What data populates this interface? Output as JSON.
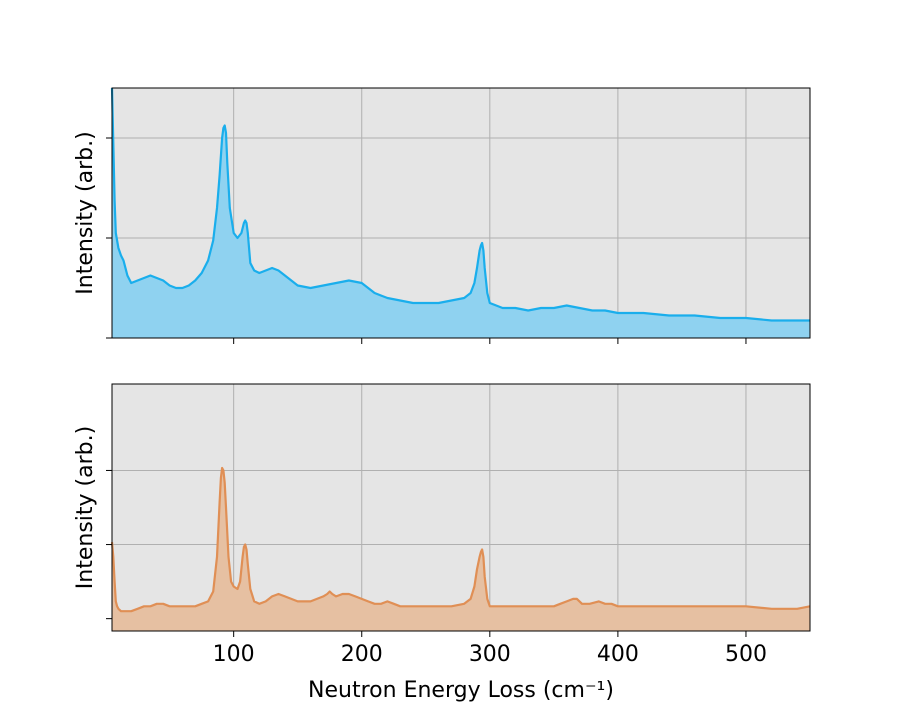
{
  "chart_data": [
    {
      "type": "area",
      "ylabel": "Intensity (arb.)",
      "xlabel": "",
      "xlim": [
        5,
        550
      ],
      "ylim": [
        0,
        1
      ],
      "grid": true,
      "x_ticks": [
        100,
        200,
        300,
        400,
        500
      ],
      "x_tick_labels_shown": false,
      "y_ticks": [
        0,
        0.4,
        0.8
      ],
      "y_tick_labels_shown": false,
      "colors": {
        "line": "#1aaeec",
        "fill": "#8fd2f0",
        "background": "#e5e5e5"
      },
      "series": [
        {
          "x": [
            5,
            6,
            7,
            8,
            10,
            12,
            14,
            17,
            20,
            25,
            30,
            35,
            40,
            45,
            50,
            55,
            60,
            65,
            70,
            75,
            80,
            84,
            87,
            89,
            91,
            92,
            93,
            94,
            95,
            97,
            100,
            103,
            106,
            108,
            109,
            110,
            111,
            113,
            116,
            120,
            125,
            130,
            135,
            140,
            145,
            150,
            160,
            170,
            180,
            190,
            200,
            210,
            220,
            230,
            240,
            250,
            260,
            270,
            280,
            285,
            288,
            290,
            292,
            293,
            294,
            295,
            296,
            298,
            300,
            305,
            310,
            320,
            330,
            340,
            350,
            360,
            370,
            380,
            390,
            400,
            420,
            440,
            460,
            480,
            500,
            520,
            540,
            550
          ],
          "y": [
            1.0,
            0.78,
            0.55,
            0.42,
            0.36,
            0.33,
            0.31,
            0.25,
            0.22,
            0.23,
            0.24,
            0.25,
            0.24,
            0.23,
            0.21,
            0.2,
            0.2,
            0.21,
            0.23,
            0.26,
            0.31,
            0.39,
            0.52,
            0.65,
            0.8,
            0.84,
            0.85,
            0.82,
            0.7,
            0.52,
            0.42,
            0.4,
            0.42,
            0.46,
            0.47,
            0.46,
            0.42,
            0.3,
            0.27,
            0.26,
            0.27,
            0.28,
            0.27,
            0.25,
            0.23,
            0.21,
            0.2,
            0.21,
            0.22,
            0.23,
            0.22,
            0.18,
            0.16,
            0.15,
            0.14,
            0.14,
            0.14,
            0.15,
            0.16,
            0.18,
            0.22,
            0.28,
            0.35,
            0.37,
            0.38,
            0.35,
            0.28,
            0.18,
            0.14,
            0.13,
            0.12,
            0.12,
            0.11,
            0.12,
            0.12,
            0.13,
            0.12,
            0.11,
            0.11,
            0.1,
            0.1,
            0.09,
            0.09,
            0.08,
            0.08,
            0.07,
            0.07,
            0.07
          ]
        }
      ]
    },
    {
      "type": "area",
      "ylabel": "Intensity (arb.)",
      "xlabel": "Neutron Energy Loss (cm⁻¹)",
      "xlim": [
        5,
        550
      ],
      "ylim": [
        0,
        1
      ],
      "grid": true,
      "x_ticks": [
        100,
        200,
        300,
        400,
        500
      ],
      "x_tick_labels": [
        "100",
        "200",
        "300",
        "400",
        "500"
      ],
      "y_ticks": [
        0.05,
        0.35,
        0.65
      ],
      "y_tick_labels_shown": false,
      "colors": {
        "line": "#e08f55",
        "fill": "#e6c0a2",
        "background": "#e5e5e5"
      },
      "series": [
        {
          "x": [
            5,
            6,
            7,
            8,
            9,
            10,
            12,
            15,
            20,
            25,
            30,
            35,
            40,
            45,
            50,
            55,
            60,
            65,
            70,
            75,
            80,
            84,
            87,
            89,
            90,
            91,
            92,
            93,
            94,
            96,
            98,
            100,
            103,
            105,
            107,
            108,
            109,
            110,
            111,
            113,
            116,
            120,
            125,
            130,
            135,
            140,
            145,
            150,
            155,
            160,
            165,
            170,
            173,
            175,
            177,
            180,
            185,
            190,
            195,
            200,
            205,
            210,
            215,
            220,
            225,
            230,
            240,
            250,
            260,
            270,
            280,
            285,
            288,
            290,
            292,
            293,
            294,
            295,
            296,
            298,
            300,
            305,
            310,
            320,
            330,
            340,
            350,
            355,
            360,
            365,
            368,
            372,
            378,
            385,
            390,
            395,
            400,
            410,
            420,
            430,
            440,
            460,
            480,
            500,
            520,
            540,
            550
          ],
          "y": [
            0.36,
            0.3,
            0.2,
            0.12,
            0.1,
            0.09,
            0.08,
            0.08,
            0.08,
            0.09,
            0.1,
            0.1,
            0.11,
            0.11,
            0.1,
            0.1,
            0.1,
            0.1,
            0.1,
            0.11,
            0.12,
            0.16,
            0.3,
            0.52,
            0.62,
            0.66,
            0.65,
            0.6,
            0.5,
            0.3,
            0.2,
            0.18,
            0.17,
            0.2,
            0.3,
            0.34,
            0.35,
            0.33,
            0.27,
            0.17,
            0.12,
            0.11,
            0.12,
            0.14,
            0.15,
            0.14,
            0.13,
            0.12,
            0.12,
            0.12,
            0.13,
            0.14,
            0.15,
            0.16,
            0.15,
            0.14,
            0.15,
            0.15,
            0.14,
            0.13,
            0.12,
            0.11,
            0.11,
            0.12,
            0.11,
            0.1,
            0.1,
            0.1,
            0.1,
            0.1,
            0.11,
            0.13,
            0.18,
            0.25,
            0.3,
            0.32,
            0.33,
            0.3,
            0.22,
            0.13,
            0.1,
            0.1,
            0.1,
            0.1,
            0.1,
            0.1,
            0.1,
            0.11,
            0.12,
            0.13,
            0.13,
            0.11,
            0.11,
            0.12,
            0.11,
            0.11,
            0.1,
            0.1,
            0.1,
            0.1,
            0.1,
            0.1,
            0.1,
            0.1,
            0.09,
            0.09,
            0.1
          ]
        }
      ]
    }
  ]
}
